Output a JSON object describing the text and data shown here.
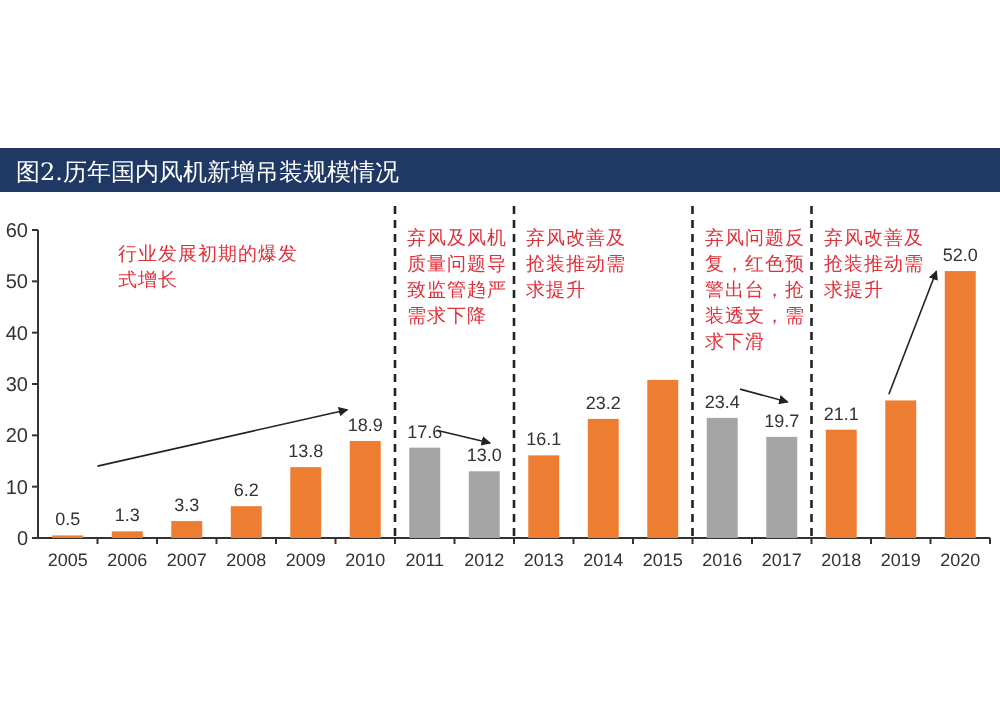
{
  "chart_data": {
    "type": "bar",
    "title": "图2.历年国内风机新增吊装规模情况",
    "x": [
      2005,
      2006,
      2007,
      2008,
      2009,
      2010,
      2011,
      2012,
      2013,
      2014,
      2015,
      2016,
      2017,
      2018,
      2019,
      2020
    ],
    "values": [
      0.5,
      1.3,
      3.3,
      6.2,
      13.8,
      18.9,
      17.6,
      13.0,
      16.1,
      23.2,
      30.8,
      23.4,
      19.7,
      21.1,
      26.8,
      52.0
    ],
    "value_labels": [
      "0.5",
      "1.3",
      "3.3",
      "6.2",
      "13.8",
      "18.9",
      "17.6",
      "13.0",
      "16.1",
      "23.2",
      null,
      "23.4",
      "19.7",
      "21.1",
      null,
      "52.0"
    ],
    "colors": [
      "#ed7d31",
      "#ed7d31",
      "#ed7d31",
      "#ed7d31",
      "#ed7d31",
      "#ed7d31",
      "#a5a5a5",
      "#a5a5a5",
      "#ed7d31",
      "#ed7d31",
      "#ed7d31",
      "#a5a5a5",
      "#a5a5a5",
      "#ed7d31",
      "#ed7d31",
      "#ed7d31"
    ],
    "xlim": [
      2004.5,
      2020.5
    ],
    "xticks": [
      2005,
      2006,
      2007,
      2008,
      2009,
      2010,
      2011,
      2012,
      2013,
      2014,
      2015,
      2016,
      2017,
      2018,
      2019,
      2020
    ],
    "ylim": [
      0,
      60
    ],
    "yticks": [
      0,
      10,
      20,
      30,
      40,
      50,
      60
    ],
    "ref_lines": [
      {
        "axis": "x",
        "value": 2010.5,
        "line_style": "dashed",
        "color": "#222222"
      },
      {
        "axis": "x",
        "value": 2012.5,
        "line_style": "dashed",
        "color": "#222222"
      },
      {
        "axis": "x",
        "value": 2015.5,
        "line_style": "dashed",
        "color": "#222222"
      },
      {
        "axis": "x",
        "value": 2017.5,
        "line_style": "dashed",
        "color": "#222222"
      }
    ],
    "annotations": [
      "行业发展初期的爆发式增长",
      "弃风及风机质量问题导致监管趋严需求下降",
      "弃风改善及抢装推动需求提升",
      "弃风问题反复，红色预警出台，抢装透支，需求下滑",
      "弃风改善及抢装推动需求提升"
    ],
    "grid": false
  }
}
